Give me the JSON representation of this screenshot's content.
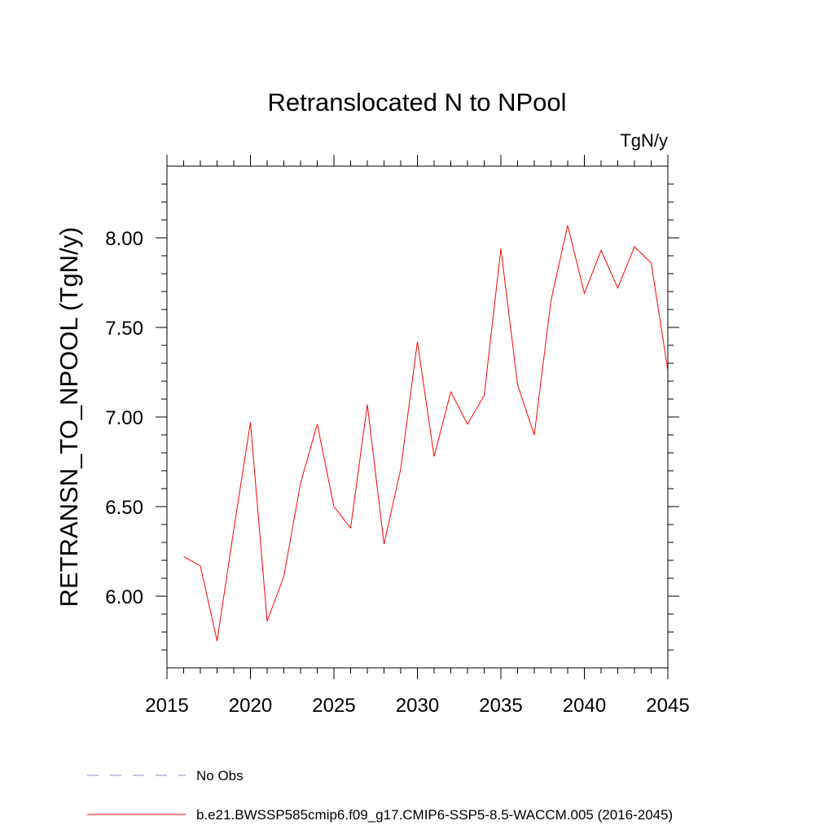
{
  "chart_data": {
    "type": "line",
    "title": "Retranslocated N to NPool",
    "units_label": "TgN/y",
    "ylabel": "RETRANSN_TO_NPOOL  (TgN/y)",
    "xlabel": "",
    "xlim": [
      2015,
      2045
    ],
    "ylim": [
      5.6,
      8.4
    ],
    "x_ticks": [
      2015,
      2020,
      2025,
      2030,
      2035,
      2040,
      2045
    ],
    "x_tick_labels": [
      "2015",
      "2020",
      "2025",
      "2030",
      "2035",
      "2040",
      "2045"
    ],
    "y_ticks": [
      6.0,
      6.5,
      7.0,
      7.5,
      8.0
    ],
    "y_tick_labels": [
      "6.00",
      "6.50",
      "7.00",
      "7.50",
      "8.00"
    ],
    "grid": false,
    "legend_position": "bottom",
    "series": [
      {
        "name": "b.e21.BWSSP585cmip6.f09_g17.CMIP6-SSP5-8.5-WACCM.005 (2016-2045)",
        "color": "#ff0000",
        "style": "solid",
        "x": [
          2016,
          2017,
          2018,
          2019,
          2020,
          2021,
          2022,
          2023,
          2024,
          2025,
          2026,
          2027,
          2028,
          2029,
          2030,
          2031,
          2032,
          2033,
          2034,
          2035,
          2036,
          2037,
          2038,
          2039,
          2040,
          2041,
          2042,
          2043,
          2044,
          2045
        ],
        "y": [
          6.22,
          6.17,
          5.75,
          6.37,
          6.97,
          5.86,
          6.11,
          6.63,
          6.96,
          6.5,
          6.38,
          7.07,
          6.29,
          6.71,
          7.42,
          6.78,
          7.14,
          6.96,
          7.12,
          7.94,
          7.18,
          6.9,
          7.65,
          8.07,
          7.69,
          7.93,
          7.72,
          7.95,
          7.86,
          7.26
        ]
      }
    ],
    "legend": [
      {
        "label": "No Obs",
        "color": "#8c82c8",
        "style": "dashed"
      },
      {
        "label": "b.e21.BWSSP585cmip6.f09_g17.CMIP6-SSP5-8.5-WACCM.005 (2016-2045)",
        "color": "#ff0000",
        "style": "solid"
      }
    ]
  }
}
